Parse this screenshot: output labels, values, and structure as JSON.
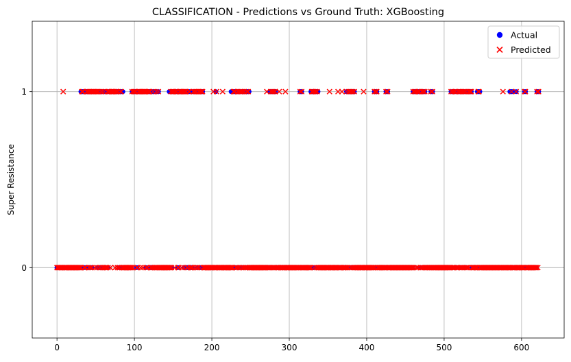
{
  "chart_data": {
    "type": "scatter",
    "title": "CLASSIFICATION - Predictions vs Ground Truth: XGBoosting",
    "xlabel": "",
    "ylabel": "Super Resistance",
    "xlim": [
      -32,
      655
    ],
    "ylim": [
      -0.4,
      1.4
    ],
    "x_ticks": [
      0,
      100,
      200,
      300,
      400,
      500,
      600
    ],
    "x_tick_labels": [
      "0",
      "100",
      "200",
      "300",
      "400",
      "500",
      "600"
    ],
    "y_ticks": [
      0,
      1
    ],
    "y_tick_labels": [
      "0",
      "1"
    ],
    "grid": true,
    "legend_position": "upper right",
    "n_points": 623,
    "series": [
      {
        "name": "Actual",
        "marker": "circle",
        "color": "#0000ff",
        "positive_x": [
          31,
          32,
          33,
          34,
          35,
          37,
          38,
          39,
          40,
          42,
          43,
          44,
          46,
          47,
          48,
          49,
          50,
          51,
          53,
          54,
          56,
          57,
          58,
          60,
          61,
          63,
          64,
          65,
          67,
          68,
          69,
          70,
          71,
          72,
          73,
          74,
          75,
          76,
          77,
          78,
          79,
          81,
          82,
          83,
          84,
          85,
          97,
          98,
          99,
          100,
          101,
          102,
          104,
          105,
          106,
          107,
          108,
          109,
          110,
          111,
          112,
          113,
          114,
          116,
          117,
          118,
          119,
          120,
          124,
          125,
          127,
          128,
          129,
          131,
          145,
          147,
          149,
          150,
          151,
          152,
          153,
          154,
          155,
          157,
          158,
          159,
          160,
          161,
          162,
          163,
          165,
          166,
          167,
          170,
          171,
          176,
          177,
          178,
          179,
          180,
          182,
          183,
          184,
          186,
          187,
          188,
          205,
          225,
          226,
          228,
          229,
          230,
          232,
          233,
          235,
          237,
          238,
          240,
          241,
          242,
          243,
          245,
          246,
          247,
          248,
          275,
          276,
          278,
          279,
          281,
          282,
          314,
          315,
          316,
          328,
          329,
          330,
          331,
          333,
          334,
          335,
          336,
          337,
          374,
          375,
          377,
          378,
          379,
          380,
          382,
          383,
          384,
          410,
          411,
          412,
          413,
          425,
          426,
          427,
          460,
          461,
          462,
          463,
          464,
          465,
          466,
          467,
          468,
          470,
          471,
          472,
          473,
          474,
          475,
          483,
          484,
          485,
          509,
          511,
          512,
          513,
          515,
          517,
          518,
          519,
          520,
          522,
          523,
          524,
          526,
          528,
          530,
          531,
          532,
          533,
          534,
          535,
          543,
          544,
          545,
          546,
          585,
          586,
          587,
          588,
          593,
          604,
          605,
          620,
          621,
          622
        ]
      },
      {
        "name": "Predicted",
        "marker": "x",
        "color": "#ff0000",
        "positive_x": [
          8,
          32,
          33,
          34,
          38,
          39,
          40,
          42,
          44,
          46,
          47,
          48,
          50,
          51,
          53,
          54,
          57,
          58,
          61,
          65,
          67,
          68,
          70,
          71,
          72,
          73,
          74,
          76,
          77,
          79,
          82,
          83,
          97,
          99,
          100,
          101,
          102,
          105,
          106,
          107,
          109,
          110,
          112,
          113,
          114,
          116,
          118,
          119,
          120,
          124,
          128,
          131,
          147,
          149,
          150,
          151,
          153,
          154,
          155,
          158,
          159,
          160,
          162,
          163,
          165,
          166,
          167,
          170,
          171,
          176,
          177,
          179,
          180,
          183,
          184,
          186,
          187,
          188,
          202,
          206,
          214,
          228,
          229,
          230,
          233,
          235,
          237,
          238,
          240,
          242,
          245,
          247,
          271,
          276,
          278,
          280,
          282,
          287,
          295,
          314,
          316,
          329,
          330,
          331,
          333,
          334,
          336,
          352,
          363,
          368,
          374,
          377,
          378,
          380,
          382,
          384,
          396,
          410,
          412,
          413,
          425,
          427,
          460,
          462,
          463,
          465,
          467,
          468,
          471,
          473,
          475,
          483,
          485,
          509,
          511,
          513,
          515,
          518,
          520,
          522,
          524,
          526,
          528,
          531,
          533,
          534,
          535,
          544,
          545,
          576,
          587,
          593,
          604,
          605,
          620,
          622
        ]
      }
    ]
  },
  "legend": {
    "items": [
      {
        "label": "Actual",
        "color": "#0000ff"
      },
      {
        "label": "Predicted",
        "color": "#ff0000"
      }
    ]
  }
}
